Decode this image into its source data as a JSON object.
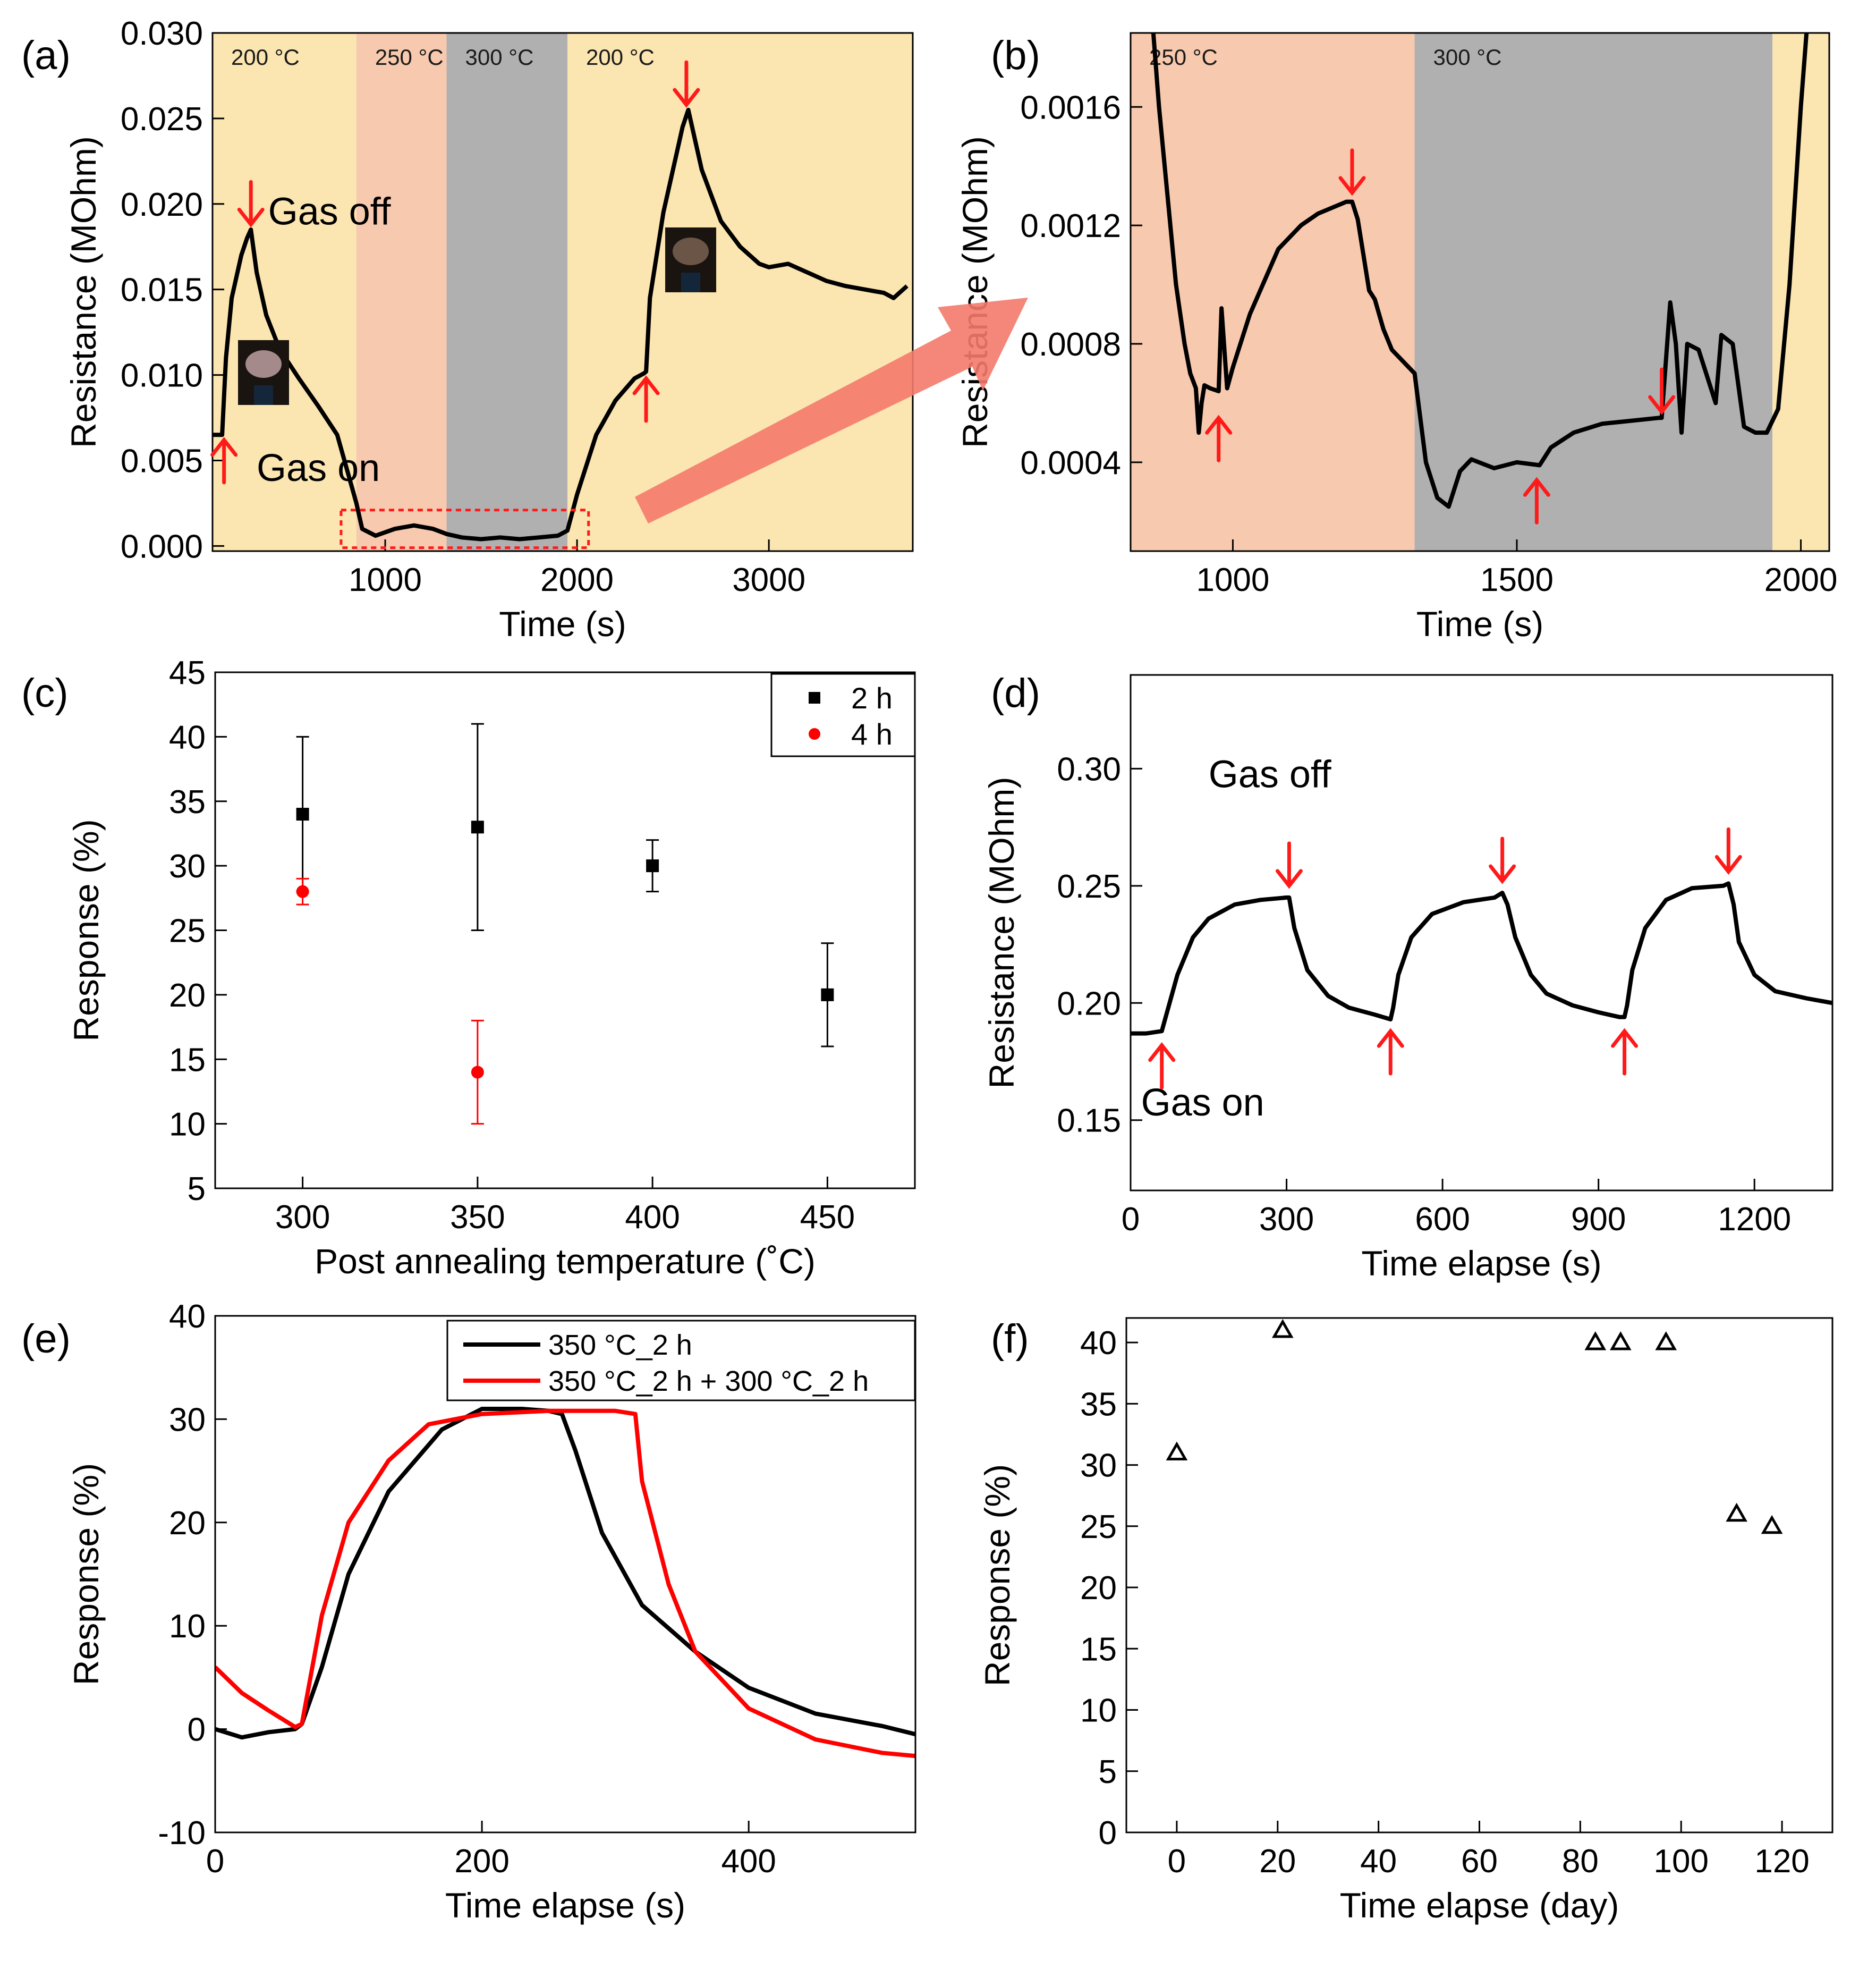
{
  "chart_data": [
    {
      "id": "a",
      "panel_label": "(a)",
      "type": "line",
      "xlabel": "Time (s)",
      "ylabel": "Resistance (MOhm)",
      "xlim": [
        100,
        3750
      ],
      "ylim": [
        -0.0003,
        0.03
      ],
      "xticks": [
        1000,
        2000,
        3000
      ],
      "xtick_labels": [
        "1000",
        "2000",
        "3000"
      ],
      "yticks": [
        0,
        0.005,
        0.01,
        0.015,
        0.02,
        0.025,
        0.03
      ],
      "ytick_labels": [
        "0.000",
        "0.005",
        "0.010",
        "0.015",
        "0.020",
        "0.025",
        "0.030"
      ],
      "regions": [
        {
          "x0": 100,
          "x1": 850,
          "color": "#fbe5b0",
          "label": "200 °C"
        },
        {
          "x0": 850,
          "x1": 1320,
          "color": "#f7c9ae",
          "label": "250 °C"
        },
        {
          "x0": 1320,
          "x1": 1950,
          "color": "#b0b0b0",
          "label": "300 °C"
        },
        {
          "x0": 1950,
          "x1": 3750,
          "color": "#fbe5b0",
          "label": "200 °C"
        }
      ],
      "series": [
        {
          "name": "resistance",
          "color": "#000000",
          "x": [
            100,
            150,
            170,
            200,
            250,
            280,
            300,
            330,
            380,
            450,
            550,
            650,
            750,
            800,
            850,
            880,
            950,
            1050,
            1150,
            1250,
            1320,
            1400,
            1500,
            1600,
            1700,
            1800,
            1900,
            1950,
            2000,
            2100,
            2200,
            2300,
            2350,
            2360,
            2380,
            2450,
            2550,
            2580,
            2650,
            2750,
            2850,
            2950,
            3000,
            3100,
            3200,
            3300,
            3400,
            3500,
            3600,
            3650,
            3700,
            3720
          ],
          "y": [
            0.0065,
            0.0065,
            0.011,
            0.0145,
            0.017,
            0.018,
            0.0185,
            0.016,
            0.0135,
            0.0115,
            0.0098,
            0.0082,
            0.0065,
            0.0045,
            0.0025,
            0.001,
            0.0006,
            0.001,
            0.0012,
            0.001,
            0.0007,
            0.0005,
            0.0004,
            0.0005,
            0.0004,
            0.0005,
            0.0006,
            0.0009,
            0.003,
            0.0065,
            0.0085,
            0.0098,
            0.0101,
            0.0102,
            0.0145,
            0.0195,
            0.0245,
            0.0255,
            0.022,
            0.019,
            0.0175,
            0.0165,
            0.0163,
            0.0165,
            0.016,
            0.0155,
            0.0152,
            0.015,
            0.0148,
            0.0145,
            0.015,
            0.0152
          ]
        }
      ],
      "annotations": [
        {
          "text": "Gas off",
          "x": 390,
          "y": 0.0188
        },
        {
          "text": "Gas on",
          "x": 330,
          "y": 0.0038
        }
      ],
      "arrows": [
        {
          "dir": "down",
          "x": 300,
          "y": 0.0188
        },
        {
          "dir": "up",
          "x": 160,
          "y": 0.0062
        },
        {
          "dir": "up",
          "x": 2360,
          "y": 0.0098
        },
        {
          "dir": "down",
          "x": 2570,
          "y": 0.0258
        }
      ]
    },
    {
      "id": "b",
      "panel_label": "(b)",
      "type": "line",
      "xlabel": "Time (s)",
      "ylabel": "Resistance (MOhm)",
      "xlim": [
        820,
        2050
      ],
      "ylim": [
        0.0001,
        0.00185
      ],
      "xticks": [
        1000,
        1500,
        2000
      ],
      "xtick_labels": [
        "1000",
        "1500",
        "2000"
      ],
      "yticks": [
        0.0004,
        0.0008,
        0.0012,
        0.0016
      ],
      "ytick_labels": [
        "0.0004",
        "0.0008",
        "0.0012",
        "0.0016"
      ],
      "regions": [
        {
          "x0": 820,
          "x1": 1320,
          "color": "#f7c9ae",
          "label": "250 °C"
        },
        {
          "x0": 1320,
          "x1": 1950,
          "color": "#b0b0b0",
          "label": "300 °C"
        },
        {
          "x0": 1950,
          "x1": 2050,
          "color": "#fbe5b0",
          "label": ""
        }
      ],
      "series": [
        {
          "name": "resistance",
          "color": "#000000",
          "x": [
            860,
            870,
            885,
            900,
            915,
            925,
            935,
            940,
            945,
            950,
            960,
            975,
            980,
            990,
            1000,
            1030,
            1080,
            1120,
            1150,
            1200,
            1210,
            1220,
            1230,
            1240,
            1250,
            1265,
            1280,
            1300,
            1320,
            1340,
            1360,
            1380,
            1400,
            1420,
            1460,
            1500,
            1540,
            1560,
            1600,
            1650,
            1700,
            1750,
            1755,
            1770,
            1780,
            1790,
            1800,
            1820,
            1850,
            1860,
            1880,
            1900,
            1920,
            1940,
            1960,
            1980,
            2000,
            2010
          ],
          "y": [
            0.00185,
            0.0016,
            0.0013,
            0.001,
            0.0008,
            0.0007,
            0.00065,
            0.0005,
            0.0006,
            0.00066,
            0.00065,
            0.00064,
            0.00092,
            0.00065,
            0.00072,
            0.0009,
            0.00112,
            0.0012,
            0.00124,
            0.00128,
            0.00128,
            0.00122,
            0.0011,
            0.00098,
            0.00095,
            0.00085,
            0.00078,
            0.00074,
            0.0007,
            0.0004,
            0.00028,
            0.00025,
            0.00037,
            0.00041,
            0.00038,
            0.0004,
            0.00039,
            0.00045,
            0.0005,
            0.00053,
            0.00054,
            0.00055,
            0.00055,
            0.00094,
            0.0008,
            0.0005,
            0.0008,
            0.00078,
            0.0006,
            0.00083,
            0.0008,
            0.00052,
            0.0005,
            0.0005,
            0.00058,
            0.001,
            0.0016,
            0.00185
          ]
        }
      ],
      "annotations": [],
      "arrows": [
        {
          "dir": "up",
          "x": 975,
          "y": 0.00055
        },
        {
          "dir": "down",
          "x": 1210,
          "y": 0.00131
        },
        {
          "dir": "up",
          "x": 1535,
          "y": 0.00034
        },
        {
          "dir": "down",
          "x": 1755,
          "y": 0.00057
        }
      ],
      "zoom_arrow": {
        "from": "a",
        "to": "b"
      }
    },
    {
      "id": "c",
      "panel_label": "(c)",
      "type": "scatter",
      "xlabel": "Post annealing temperature (˚C)",
      "ylabel": "Response (%)",
      "xlim": [
        275,
        475
      ],
      "ylim": [
        5,
        45
      ],
      "xticks": [
        300,
        350,
        400,
        450
      ],
      "xtick_labels": [
        "300",
        "350",
        "400",
        "450"
      ],
      "yticks": [
        5,
        10,
        15,
        20,
        25,
        30,
        35,
        40,
        45
      ],
      "ytick_labels": [
        "5",
        "10",
        "15",
        "20",
        "25",
        "30",
        "35",
        "40",
        "45"
      ],
      "series": [
        {
          "name": "2 h",
          "color": "#000000",
          "marker": "square",
          "x": [
            300,
            350,
            400,
            450
          ],
          "y": [
            34,
            33,
            30,
            20
          ],
          "err": [
            6,
            8,
            2,
            4
          ]
        },
        {
          "name": "4 h",
          "color": "#ff0000",
          "marker": "circle",
          "x": [
            300,
            350
          ],
          "y": [
            28,
            14
          ],
          "err": [
            1,
            4
          ]
        }
      ],
      "legend": [
        {
          "label": "2 h",
          "color": "#000000",
          "marker": "square"
        },
        {
          "label": "4 h",
          "color": "#ff0000",
          "marker": "circle"
        }
      ],
      "annotations": [],
      "arrows": []
    },
    {
      "id": "d",
      "panel_label": "(d)",
      "type": "line",
      "xlabel": "Time elapse (s)",
      "ylabel": "Resistance (MOhm)",
      "xlim": [
        0,
        1350
      ],
      "ylim": [
        0.12,
        0.34
      ],
      "xticks": [
        0,
        300,
        600,
        900,
        1200
      ],
      "xtick_labels": [
        "0",
        "300",
        "600",
        "900",
        "1200"
      ],
      "yticks": [
        0.15,
        0.2,
        0.25,
        0.3
      ],
      "ytick_labels": [
        "0.15",
        "0.20",
        "0.25",
        "0.30"
      ],
      "series": [
        {
          "name": "resistance",
          "color": "#000000",
          "x": [
            0,
            30,
            60,
            70,
            90,
            120,
            150,
            200,
            250,
            300,
            305,
            315,
            340,
            380,
            420,
            470,
            500,
            505,
            515,
            540,
            580,
            640,
            700,
            715,
            725,
            740,
            770,
            800,
            850,
            900,
            940,
            950,
            955,
            965,
            990,
            1030,
            1080,
            1140,
            1150,
            1160,
            1170,
            1200,
            1240,
            1300,
            1350
          ],
          "y": [
            0.187,
            0.187,
            0.188,
            0.196,
            0.212,
            0.228,
            0.236,
            0.242,
            0.244,
            0.245,
            0.245,
            0.232,
            0.214,
            0.203,
            0.198,
            0.195,
            0.193,
            0.198,
            0.212,
            0.228,
            0.238,
            0.243,
            0.245,
            0.247,
            0.242,
            0.228,
            0.212,
            0.204,
            0.199,
            0.196,
            0.194,
            0.194,
            0.199,
            0.214,
            0.232,
            0.244,
            0.249,
            0.25,
            0.251,
            0.242,
            0.226,
            0.212,
            0.205,
            0.202,
            0.2
          ]
        }
      ],
      "annotations": [
        {
          "text": "Gas off",
          "x": 150,
          "y": 0.292
        },
        {
          "text": "Gas on",
          "x": 20,
          "y": 0.152
        }
      ],
      "arrows": [
        {
          "dir": "up",
          "x": 60,
          "y": 0.182
        },
        {
          "dir": "down",
          "x": 305,
          "y": 0.25
        },
        {
          "dir": "up",
          "x": 500,
          "y": 0.188
        },
        {
          "dir": "down",
          "x": 715,
          "y": 0.252
        },
        {
          "dir": "up",
          "x": 950,
          "y": 0.188
        },
        {
          "dir": "down",
          "x": 1150,
          "y": 0.256
        }
      ]
    },
    {
      "id": "e",
      "panel_label": "(e)",
      "type": "line",
      "xlabel": "Time elapse (s)",
      "ylabel": "Response (%)",
      "xlim": [
        0,
        525
      ],
      "ylim": [
        -10,
        40
      ],
      "xticks": [
        0,
        200,
        400
      ],
      "xtick_labels": [
        "0",
        "200",
        "400"
      ],
      "yticks": [
        -10,
        0,
        10,
        20,
        30,
        40
      ],
      "ytick_labels": [
        "-10",
        "0",
        "10",
        "20",
        "30",
        "40"
      ],
      "series": [
        {
          "name": "350 °C_2 h",
          "color": "#000000",
          "x": [
            0,
            20,
            40,
            60,
            65,
            80,
            100,
            130,
            170,
            200,
            230,
            250,
            260,
            270,
            290,
            320,
            360,
            400,
            450,
            500,
            525
          ],
          "y": [
            0,
            -0.8,
            -0.3,
            0,
            0.5,
            6,
            15,
            23,
            29,
            31,
            31,
            30.8,
            30.5,
            27,
            19,
            12,
            7.5,
            4,
            1.5,
            0.3,
            -0.5
          ]
        },
        {
          "name": "350 °C_2 h + 300 °C_2 h",
          "color": "#ff0000",
          "x": [
            0,
            20,
            40,
            60,
            65,
            80,
            100,
            130,
            160,
            200,
            250,
            300,
            315,
            320,
            340,
            360,
            400,
            450,
            500,
            525
          ],
          "y": [
            6,
            3.5,
            1.8,
            0.2,
            0.5,
            11,
            20,
            26,
            29.5,
            30.5,
            30.8,
            30.8,
            30.5,
            24,
            14,
            7.5,
            2,
            -1,
            -2.3,
            -2.6
          ]
        }
      ],
      "legend": [
        {
          "label": "350 °C_2 h",
          "color": "#000000"
        },
        {
          "label": "350 °C_2 h + 300 °C_2 h",
          "color": "#ff0000"
        }
      ],
      "annotations": [],
      "arrows": []
    },
    {
      "id": "f",
      "panel_label": "(f)",
      "type": "scatter",
      "xlabel": "Time elapse (day)",
      "ylabel": "Response (%)",
      "xlim": [
        -10,
        130
      ],
      "ylim": [
        0,
        42
      ],
      "xticks": [
        0,
        20,
        40,
        60,
        80,
        100,
        120
      ],
      "xtick_labels": [
        "0",
        "20",
        "40",
        "60",
        "80",
        "100",
        "120"
      ],
      "yticks": [
        0,
        5,
        10,
        15,
        20,
        25,
        30,
        35,
        40
      ],
      "ytick_labels": [
        "0",
        "5",
        "10",
        "15",
        "20",
        "25",
        "30",
        "35",
        "40"
      ],
      "series": [
        {
          "name": "response",
          "color": "#000000",
          "marker": "triangle-open",
          "x": [
            0,
            21,
            83,
            88,
            97,
            111,
            118
          ],
          "y": [
            31,
            41,
            40,
            40,
            40,
            26,
            25
          ]
        }
      ],
      "annotations": [],
      "arrows": []
    }
  ]
}
